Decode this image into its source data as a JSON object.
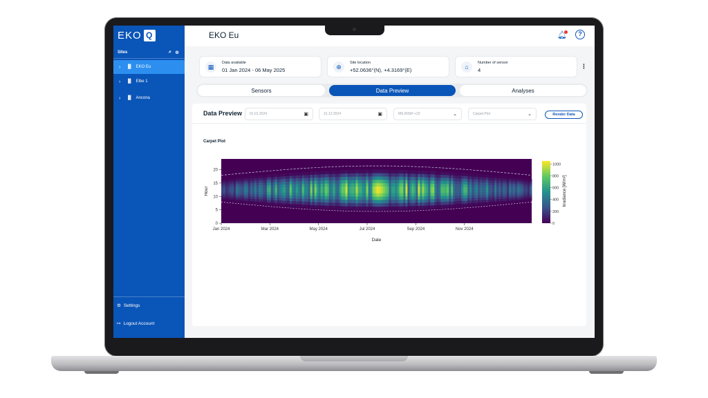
{
  "app": {
    "logo_text": "EKO",
    "logo_mark": "Q"
  },
  "sidebar": {
    "sites_label": "Sites",
    "items": [
      {
        "label": "EKO Eu",
        "active": true
      },
      {
        "label": "Elbe 1",
        "active": false
      },
      {
        "label": "Ancona",
        "active": false
      }
    ],
    "settings_label": "Settings",
    "logout_label": "Logout Account"
  },
  "header": {
    "title": "EKO Eu"
  },
  "info_cards": [
    {
      "label": "Data available",
      "value": "01 Jan 2024 - 06 May 2025",
      "icon": "calendar-icon"
    },
    {
      "label": "Site location",
      "value": "+52.0636°(N), +4.3169°(E)",
      "icon": "globe-icon"
    },
    {
      "label": "Number of sensor",
      "value": "4",
      "icon": "sensor-icon"
    }
  ],
  "tabs": [
    {
      "label": "Sensors",
      "active": false
    },
    {
      "label": "Data Preview",
      "active": true
    },
    {
      "label": "Analyses",
      "active": false
    }
  ],
  "data_preview": {
    "title": "Data Preview",
    "start_date": "01.01.2024",
    "end_date": "31.12.2024",
    "sensor": "MS-80SH +22",
    "plot_type": "Carpet Plot",
    "render_label": "Render Data",
    "plot_title": "Carpet Plot"
  },
  "colors": {
    "brand": "#0a55b8",
    "active_item": "#2c8ff0"
  },
  "chart_data": {
    "type": "heatmap",
    "title": "Carpet Plot",
    "xlabel": "Date",
    "ylabel": "Hour",
    "x_ticks": [
      "Jan 2024",
      "Mar 2024",
      "May 2024",
      "Jul 2024",
      "Sep 2024",
      "Nov 2024"
    ],
    "y_ticks": [
      0,
      5,
      10,
      15,
      20
    ],
    "ylim": [
      0,
      24
    ],
    "colorbar_label": "Irradiance [W/m²]",
    "colorbar_ticks": [
      0,
      200,
      400,
      600,
      800,
      1000
    ],
    "zlim": [
      0,
      1050
    ],
    "colormap": "viridis",
    "sunrise_hour": {
      "jan": 8.5,
      "jun": 5.0,
      "dec": 8.5
    },
    "sunset_hour": {
      "jan": 16.5,
      "jun": 20.0,
      "dec": 16.5
    }
  }
}
